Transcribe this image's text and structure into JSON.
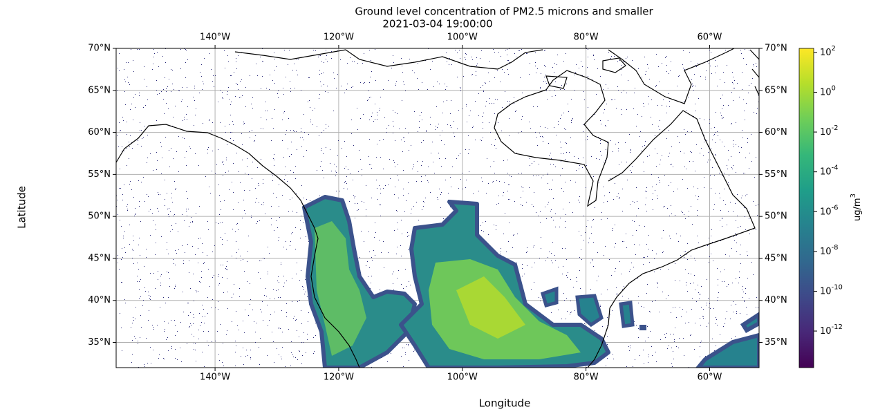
{
  "chart_data": {
    "type": "map",
    "title": "Ground level concentration of PM2.5 microns and smaller",
    "subtitle": "2021-03-04 19:00:00",
    "x_label": "Longitude",
    "y_label": "Latitude",
    "xlim": [
      -156,
      -52
    ],
    "ylim": [
      32,
      70
    ],
    "xticks": [
      {
        "value": -140,
        "label": "140°W"
      },
      {
        "value": -120,
        "label": "120°W"
      },
      {
        "value": -100,
        "label": "100°W"
      },
      {
        "value": -80,
        "label": "80°W"
      },
      {
        "value": -60,
        "label": "60°W"
      }
    ],
    "yticks": [
      {
        "value": 35,
        "label": "35°N"
      },
      {
        "value": 40,
        "label": "40°N"
      },
      {
        "value": 45,
        "label": "45°N"
      },
      {
        "value": 50,
        "label": "50°N"
      },
      {
        "value": 55,
        "label": "55°N"
      },
      {
        "value": 60,
        "label": "60°N"
      },
      {
        "value": 65,
        "label": "65°N"
      },
      {
        "value": 70,
        "label": "70°N"
      }
    ],
    "grid": true,
    "colorbar": {
      "label": "ug/m^3",
      "log_scale": true,
      "lim": [
        1.45e-14,
        160
      ],
      "ticks": [
        {
          "value": 1e-12,
          "label": "10^-12"
        },
        {
          "value": 1e-10,
          "label": "10^-10"
        },
        {
          "value": 1e-08,
          "label": "10^-8"
        },
        {
          "value": 1e-06,
          "label": "10^-6"
        },
        {
          "value": 0.0001,
          "label": "10^-4"
        },
        {
          "value": 0.01,
          "label": "10^-2"
        },
        {
          "value": 1,
          "label": "10^0"
        },
        {
          "value": 100,
          "label": "10^2"
        }
      ],
      "colors": [
        "#440154",
        "#482878",
        "#3e4989",
        "#31688e",
        "#26828e",
        "#1f9e89",
        "#35b779",
        "#6ece58",
        "#b5de2b",
        "#fde725"
      ]
    }
  }
}
